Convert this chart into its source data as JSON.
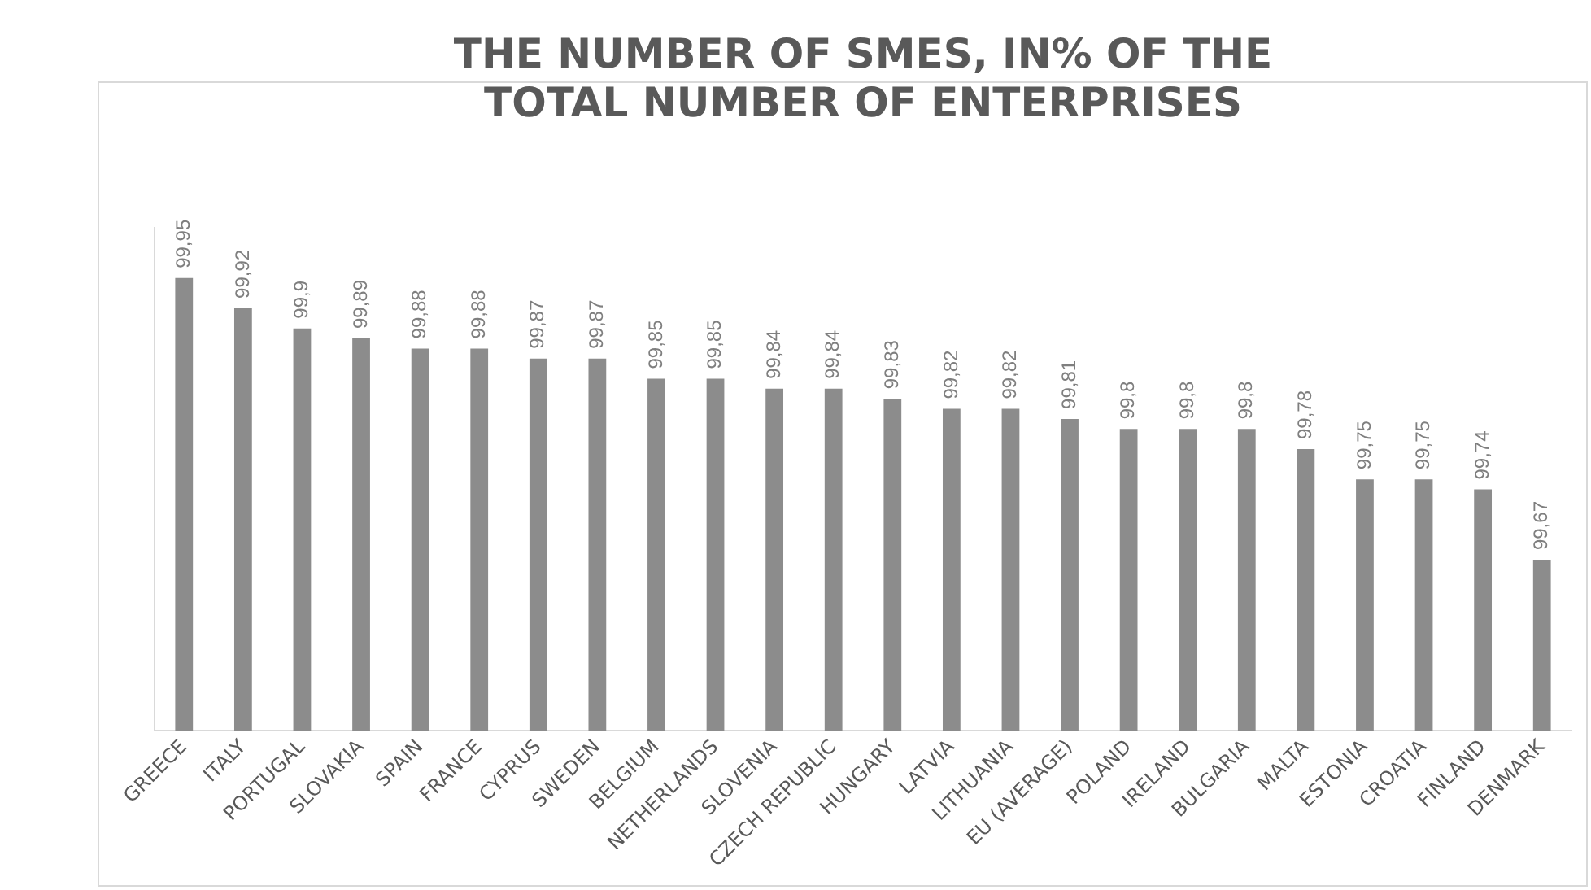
{
  "chart_data": {
    "type": "bar",
    "title": "THE NUMBER OF SMES, IN% OF THE TOTAL NUMBER OF ENTERPRISES",
    "categories": [
      "GREECE",
      "ITALY",
      "PORTUGAL",
      "SLOVAKIA",
      "SPAIN",
      "FRANCE",
      "CYPRUS",
      "SWEDEN",
      "BELGIUM",
      "NETHERLANDS",
      "SLOVENIA",
      "CZECH REPUBLIC",
      "HUNGARY",
      "LATVIA",
      "LITHUANIA",
      "EU (AVERAGE)",
      "POLAND",
      "IRELAND",
      "BULGARIA",
      "MALTA",
      "ESTONIA",
      "CROATIA",
      "FINLAND",
      "DENMARK"
    ],
    "values": [
      99.95,
      99.92,
      99.9,
      99.89,
      99.88,
      99.88,
      99.87,
      99.87,
      99.85,
      99.85,
      99.84,
      99.84,
      99.83,
      99.82,
      99.82,
      99.81,
      99.8,
      99.8,
      99.8,
      99.78,
      99.75,
      99.75,
      99.74,
      99.67
    ],
    "value_labels": [
      "99,95",
      "99,92",
      "99,9",
      "99,89",
      "99,88",
      "99,88",
      "99,87",
      "99,87",
      "99,85",
      "99,85",
      "99,84",
      "99,84",
      "99,83",
      "99,82",
      "99,82",
      "99,81",
      "99,8",
      "99,8",
      "99,8",
      "99,78",
      "99,75",
      "99,75",
      "99,74",
      "99,67"
    ],
    "color": "#8c8c8c",
    "ylim": [
      99.5,
      100
    ],
    "tick_labels": "x",
    "grid": false,
    "legend": false
  }
}
